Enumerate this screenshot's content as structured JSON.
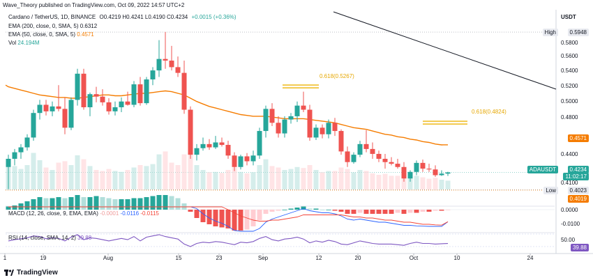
{
  "publish_line": "Wave_Theory published on TradingView.com, Oct 09, 2022 14:57 UTC+2",
  "symbol": {
    "title": "Cardano / TetherUS, 1D, BINANCE",
    "ohlc": "O0.4219 H0.4241 L0.4190 C0.4234",
    "change": "+0.0015 (+0.36%)"
  },
  "indicators": {
    "ema200_label": "EMA (200, close, 0, SMA, 5)",
    "ema200_value": "0.6312",
    "ema50_label": "EMA (50, close, 0, SMA, 5)",
    "ema50_value": "0.4571",
    "vol_label": "Vol",
    "vol_value": "24.194M",
    "macd_label": "MACD (12, 26, close, 9, EMA, EMA)",
    "macd_v1": "-0.0001",
    "macd_v2": "-0.0116",
    "macd_v3": "-0.0115",
    "rsi_label": "RSI (14, close, SMA, 14, 2)",
    "rsi_value": "39.88"
  },
  "fib": {
    "label1": "0.618(0.5267)",
    "label2": "0.618(0.4824)"
  },
  "axis": {
    "currency": "USDT",
    "prices": [
      "0.5800",
      "0.5600",
      "0.5400",
      "0.5200",
      "0.5000",
      "0.4800",
      "0.4400",
      "0.4100"
    ],
    "high_label": "High",
    "high_value": "0.5948",
    "ema50_tag": "0.4571",
    "symbol_tag": "ADAUSDT",
    "last_price": "0.4234",
    "countdown": "11:02:17",
    "low_label": "Low",
    "low_value": "0.4023",
    "tag_4019": "0.4019",
    "macd_axis": [
      "0.0000",
      "-0.0100"
    ],
    "rsi_axis": "50.00",
    "rsi_tag": "39.88"
  },
  "xaxis": [
    "1",
    "19",
    "Aug",
    "15",
    "23",
    "Sep",
    "12",
    "20",
    "Oct",
    "10",
    "24"
  ],
  "brand": "TradingView",
  "colors": {
    "up": "#26a69a",
    "down": "#ef5350",
    "ema50": "#f57c00",
    "fib": "#f2c94c",
    "macd": "#2962ff",
    "signal": "#f44336",
    "rsi": "#7e57c2"
  },
  "chart_data": {
    "type": "candlestick",
    "candles": [
      {
        "o": 0.43,
        "h": 0.445,
        "l": 0.403,
        "c": 0.44
      },
      {
        "o": 0.44,
        "h": 0.452,
        "l": 0.432,
        "c": 0.448
      },
      {
        "o": 0.448,
        "h": 0.458,
        "l": 0.44,
        "c": 0.454
      },
      {
        "o": 0.454,
        "h": 0.47,
        "l": 0.45,
        "c": 0.466
      },
      {
        "o": 0.466,
        "h": 0.5,
        "l": 0.462,
        "c": 0.496
      },
      {
        "o": 0.496,
        "h": 0.512,
        "l": 0.488,
        "c": 0.506
      },
      {
        "o": 0.506,
        "h": 0.512,
        "l": 0.493,
        "c": 0.498
      },
      {
        "o": 0.498,
        "h": 0.51,
        "l": 0.492,
        "c": 0.504
      },
      {
        "o": 0.504,
        "h": 0.53,
        "l": 0.498,
        "c": 0.501
      },
      {
        "o": 0.501,
        "h": 0.515,
        "l": 0.47,
        "c": 0.478
      },
      {
        "o": 0.478,
        "h": 0.515,
        "l": 0.475,
        "c": 0.512
      },
      {
        "o": 0.512,
        "h": 0.55,
        "l": 0.505,
        "c": 0.544
      },
      {
        "o": 0.544,
        "h": 0.55,
        "l": 0.5,
        "c": 0.503
      },
      {
        "o": 0.503,
        "h": 0.521,
        "l": 0.492,
        "c": 0.519
      },
      {
        "o": 0.519,
        "h": 0.528,
        "l": 0.509,
        "c": 0.516
      },
      {
        "o": 0.516,
        "h": 0.525,
        "l": 0.505,
        "c": 0.509
      },
      {
        "o": 0.509,
        "h": 0.514,
        "l": 0.494,
        "c": 0.498
      },
      {
        "o": 0.498,
        "h": 0.51,
        "l": 0.493,
        "c": 0.503
      },
      {
        "o": 0.503,
        "h": 0.515,
        "l": 0.497,
        "c": 0.51
      },
      {
        "o": 0.51,
        "h": 0.522,
        "l": 0.505,
        "c": 0.506
      },
      {
        "o": 0.506,
        "h": 0.535,
        "l": 0.503,
        "c": 0.531
      },
      {
        "o": 0.531,
        "h": 0.54,
        "l": 0.505,
        "c": 0.508
      },
      {
        "o": 0.508,
        "h": 0.54,
        "l": 0.506,
        "c": 0.537
      },
      {
        "o": 0.537,
        "h": 0.552,
        "l": 0.53,
        "c": 0.548
      },
      {
        "o": 0.548,
        "h": 0.585,
        "l": 0.54,
        "c": 0.562
      },
      {
        "o": 0.562,
        "h": 0.595,
        "l": 0.55,
        "c": 0.56
      },
      {
        "o": 0.56,
        "h": 0.578,
        "l": 0.548,
        "c": 0.552
      },
      {
        "o": 0.552,
        "h": 0.565,
        "l": 0.54,
        "c": 0.545
      },
      {
        "o": 0.545,
        "h": 0.56,
        "l": 0.495,
        "c": 0.5
      },
      {
        "o": 0.5,
        "h": 0.504,
        "l": 0.44,
        "c": 0.445
      },
      {
        "o": 0.445,
        "h": 0.458,
        "l": 0.438,
        "c": 0.453
      },
      {
        "o": 0.453,
        "h": 0.466,
        "l": 0.45,
        "c": 0.458
      },
      {
        "o": 0.458,
        "h": 0.464,
        "l": 0.451,
        "c": 0.454
      },
      {
        "o": 0.454,
        "h": 0.468,
        "l": 0.452,
        "c": 0.46
      },
      {
        "o": 0.46,
        "h": 0.466,
        "l": 0.455,
        "c": 0.457
      },
      {
        "o": 0.457,
        "h": 0.462,
        "l": 0.44,
        "c": 0.444
      },
      {
        "o": 0.444,
        "h": 0.448,
        "l": 0.425,
        "c": 0.43
      },
      {
        "o": 0.43,
        "h": 0.445,
        "l": 0.427,
        "c": 0.443
      },
      {
        "o": 0.443,
        "h": 0.447,
        "l": 0.432,
        "c": 0.437
      },
      {
        "o": 0.437,
        "h": 0.45,
        "l": 0.432,
        "c": 0.444
      },
      {
        "o": 0.444,
        "h": 0.478,
        "l": 0.44,
        "c": 0.474
      },
      {
        "o": 0.474,
        "h": 0.505,
        "l": 0.466,
        "c": 0.501
      },
      {
        "o": 0.501,
        "h": 0.508,
        "l": 0.48,
        "c": 0.484
      },
      {
        "o": 0.484,
        "h": 0.492,
        "l": 0.466,
        "c": 0.471
      },
      {
        "o": 0.471,
        "h": 0.492,
        "l": 0.466,
        "c": 0.488
      },
      {
        "o": 0.488,
        "h": 0.496,
        "l": 0.483,
        "c": 0.492
      },
      {
        "o": 0.492,
        "h": 0.51,
        "l": 0.485,
        "c": 0.505
      },
      {
        "o": 0.505,
        "h": 0.522,
        "l": 0.497,
        "c": 0.5
      },
      {
        "o": 0.5,
        "h": 0.506,
        "l": 0.462,
        "c": 0.466
      },
      {
        "o": 0.466,
        "h": 0.482,
        "l": 0.463,
        "c": 0.478
      },
      {
        "o": 0.478,
        "h": 0.482,
        "l": 0.465,
        "c": 0.47
      },
      {
        "o": 0.47,
        "h": 0.488,
        "l": 0.465,
        "c": 0.484
      },
      {
        "o": 0.484,
        "h": 0.49,
        "l": 0.468,
        "c": 0.474
      },
      {
        "o": 0.474,
        "h": 0.476,
        "l": 0.445,
        "c": 0.449
      },
      {
        "o": 0.449,
        "h": 0.455,
        "l": 0.43,
        "c": 0.436
      },
      {
        "o": 0.436,
        "h": 0.448,
        "l": 0.434,
        "c": 0.445
      },
      {
        "o": 0.445,
        "h": 0.462,
        "l": 0.442,
        "c": 0.458
      },
      {
        "o": 0.458,
        "h": 0.475,
        "l": 0.448,
        "c": 0.452
      },
      {
        "o": 0.452,
        "h": 0.46,
        "l": 0.44,
        "c": 0.446
      },
      {
        "o": 0.446,
        "h": 0.45,
        "l": 0.436,
        "c": 0.44
      },
      {
        "o": 0.44,
        "h": 0.446,
        "l": 0.428,
        "c": 0.436
      },
      {
        "o": 0.436,
        "h": 0.442,
        "l": 0.432,
        "c": 0.434
      },
      {
        "o": 0.434,
        "h": 0.44,
        "l": 0.428,
        "c": 0.43
      },
      {
        "o": 0.43,
        "h": 0.436,
        "l": 0.412,
        "c": 0.416
      },
      {
        "o": 0.416,
        "h": 0.426,
        "l": 0.412,
        "c": 0.424
      },
      {
        "o": 0.424,
        "h": 0.438,
        "l": 0.42,
        "c": 0.435
      },
      {
        "o": 0.435,
        "h": 0.439,
        "l": 0.424,
        "c": 0.428
      },
      {
        "o": 0.428,
        "h": 0.434,
        "l": 0.424,
        "c": 0.427
      },
      {
        "o": 0.427,
        "h": 0.432,
        "l": 0.418,
        "c": 0.42
      },
      {
        "o": 0.42,
        "h": 0.426,
        "l": 0.419,
        "c": 0.4219
      },
      {
        "o": 0.4219,
        "h": 0.4241,
        "l": 0.419,
        "c": 0.4234
      }
    ],
    "ema50": [
      0.528,
      0.526,
      0.524,
      0.522,
      0.52,
      0.518,
      0.517,
      0.516,
      0.515,
      0.515,
      0.514,
      0.514,
      0.515,
      0.516,
      0.517,
      0.518,
      0.518,
      0.517,
      0.517,
      0.518,
      0.519,
      0.52,
      0.52,
      0.521,
      0.522,
      0.523,
      0.522,
      0.52,
      0.518,
      0.514,
      0.51,
      0.507,
      0.504,
      0.502,
      0.5,
      0.498,
      0.496,
      0.494,
      0.493,
      0.492,
      0.492,
      0.492,
      0.491,
      0.49,
      0.489,
      0.489,
      0.489,
      0.489,
      0.488,
      0.487,
      0.486,
      0.485,
      0.484,
      0.482,
      0.48,
      0.478,
      0.477,
      0.476,
      0.474,
      0.472,
      0.47,
      0.469,
      0.467,
      0.466,
      0.464,
      0.463,
      0.461,
      0.46,
      0.458,
      0.457,
      0.4571
    ],
    "fib_levels": [
      0.5267,
      0.4824
    ],
    "high": 0.5948,
    "low": 0.4023,
    "macd_hist": [
      0.003,
      0.004,
      0.006,
      0.008,
      0.01,
      0.012,
      0.011,
      0.011,
      0.012,
      0.011,
      0.012,
      0.014,
      0.012,
      0.012,
      0.013,
      0.012,
      0.011,
      0.01,
      0.01,
      0.01,
      0.011,
      0.011,
      0.012,
      0.013,
      0.014,
      0.014,
      0.013,
      0.011,
      0.006,
      -0.002,
      -0.008,
      -0.012,
      -0.014,
      -0.016,
      -0.017,
      -0.018,
      -0.02,
      -0.02,
      -0.019,
      -0.016,
      -0.01,
      -0.004,
      -0.002,
      -0.001,
      0.0,
      0.001,
      0.002,
      0.003,
      0.001,
      0.001,
      0.0,
      0.0,
      -0.001,
      -0.002,
      -0.004,
      -0.004,
      -0.003,
      -0.004,
      -0.004,
      -0.004,
      -0.004,
      -0.004,
      -0.003,
      -0.004,
      -0.003,
      -0.003,
      -0.002,
      -0.002,
      -0.001,
      -0.001,
      -0.0001
    ],
    "macd_line": [
      0.014,
      0.015,
      0.016,
      0.018,
      0.02,
      0.022,
      0.022,
      0.022,
      0.021,
      0.019,
      0.019,
      0.021,
      0.019,
      0.018,
      0.018,
      0.017,
      0.015,
      0.014,
      0.013,
      0.013,
      0.014,
      0.013,
      0.014,
      0.016,
      0.018,
      0.019,
      0.019,
      0.018,
      0.014,
      0.007,
      0.001,
      -0.004,
      -0.008,
      -0.011,
      -0.013,
      -0.016,
      -0.02,
      -0.022,
      -0.023,
      -0.022,
      -0.018,
      -0.012,
      -0.009,
      -0.007,
      -0.005,
      -0.003,
      -0.001,
      0.001,
      -0.001,
      -0.002,
      -0.003,
      -0.003,
      -0.004,
      -0.006,
      -0.009,
      -0.01,
      -0.009,
      -0.01,
      -0.011,
      -0.012,
      -0.012,
      -0.013,
      -0.014,
      -0.015,
      -0.015,
      -0.0155,
      -0.0158,
      -0.016,
      -0.016,
      -0.016,
      -0.0116
    ],
    "signal_line": [
      0.011,
      0.011,
      0.011,
      0.012,
      0.013,
      0.014,
      0.015,
      0.016,
      0.016,
      0.016,
      0.016,
      0.017,
      0.017,
      0.017,
      0.017,
      0.017,
      0.016,
      0.016,
      0.015,
      0.015,
      0.015,
      0.014,
      0.014,
      0.014,
      0.015,
      0.016,
      0.016,
      0.016,
      0.016,
      0.014,
      0.012,
      0.01,
      0.008,
      0.005,
      0.003,
      0.0,
      -0.003,
      -0.006,
      -0.008,
      -0.01,
      -0.011,
      -0.011,
      -0.01,
      -0.01,
      -0.009,
      -0.008,
      -0.007,
      -0.005,
      -0.005,
      -0.005,
      -0.005,
      -0.005,
      -0.005,
      -0.005,
      -0.006,
      -0.007,
      -0.007,
      -0.008,
      -0.008,
      -0.009,
      -0.01,
      -0.01,
      -0.011,
      -0.012,
      -0.012,
      -0.013,
      -0.014,
      -0.014,
      -0.0145,
      -0.0148,
      -0.0115
    ],
    "rsi": [
      48,
      52,
      55,
      58,
      64,
      62,
      55,
      58,
      56,
      48,
      60,
      68,
      52,
      58,
      56,
      52,
      48,
      52,
      56,
      52,
      62,
      48,
      60,
      64,
      68,
      62,
      58,
      54,
      38,
      30,
      40,
      44,
      42,
      46,
      44,
      40,
      36,
      44,
      42,
      46,
      56,
      62,
      52,
      48,
      54,
      56,
      60,
      54,
      42,
      48,
      44,
      50,
      46,
      38,
      36,
      42,
      48,
      44,
      40,
      38,
      38,
      38,
      36,
      34,
      40,
      44,
      40,
      40,
      38,
      39,
      39.88
    ],
    "volume": [
      0.55,
      0.48,
      0.42,
      0.5,
      0.75,
      0.6,
      0.45,
      0.4,
      0.55,
      0.58,
      0.5,
      0.7,
      0.62,
      0.48,
      0.4,
      0.38,
      0.42,
      0.38,
      0.36,
      0.4,
      0.45,
      0.5,
      0.48,
      0.52,
      0.72,
      0.78,
      0.55,
      0.5,
      0.72,
      0.85,
      0.5,
      0.4,
      0.35,
      0.36,
      0.34,
      0.4,
      0.45,
      0.36,
      0.33,
      0.35,
      0.5,
      0.62,
      0.48,
      0.45,
      0.4,
      0.42,
      0.46,
      0.44,
      0.5,
      0.4,
      0.35,
      0.38,
      0.38,
      0.45,
      0.42,
      0.35,
      0.4,
      0.38,
      0.33,
      0.3,
      0.32,
      0.28,
      0.28,
      0.35,
      0.3,
      0.28,
      0.25,
      0.22,
      0.24,
      0.2,
      0.18
    ]
  }
}
